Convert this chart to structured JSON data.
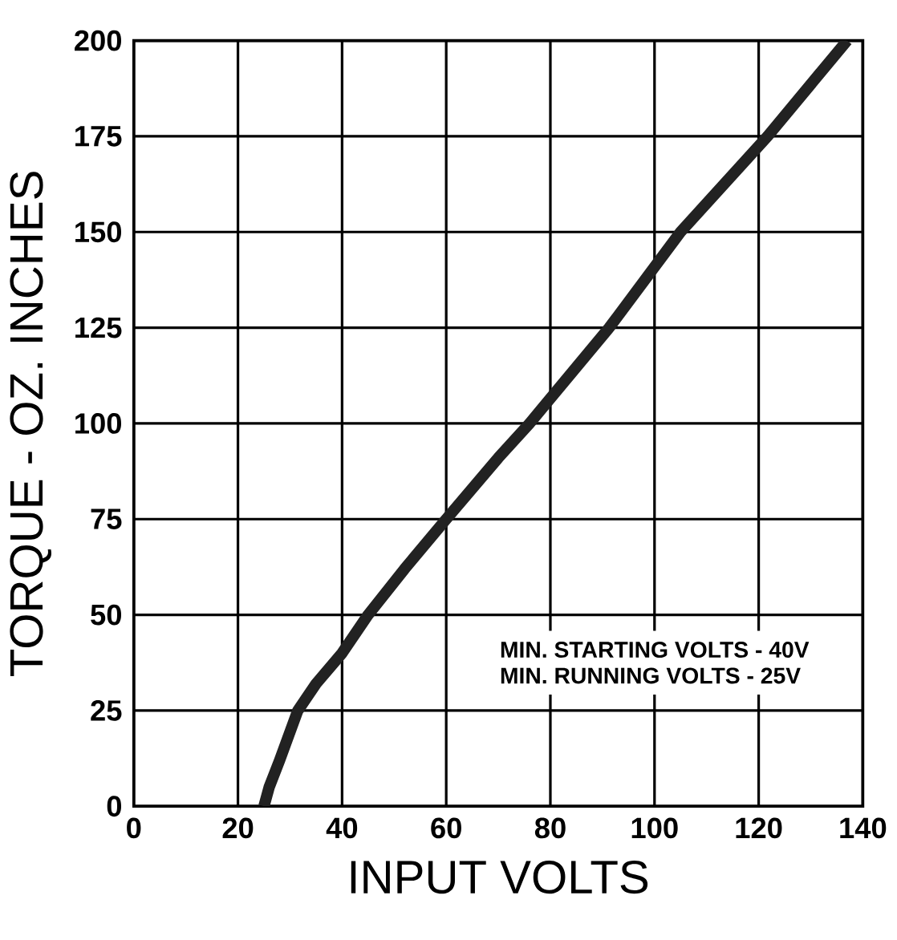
{
  "chart_data": {
    "type": "line",
    "xlabel": "INPUT VOLTS",
    "ylabel": "TORQUE - OZ. INCHES",
    "x": [
      25,
      26,
      28,
      31.5,
      35,
      40,
      45,
      52,
      60,
      70,
      76,
      91.3,
      105,
      121.7,
      137
    ],
    "values": [
      0,
      5,
      12,
      25,
      32,
      40,
      50,
      62,
      75,
      91,
      100,
      125,
      150,
      175,
      200
    ],
    "color": "#222222",
    "xlim": [
      0,
      140
    ],
    "ylim": [
      0,
      200
    ],
    "xticks": [
      0,
      20,
      40,
      60,
      80,
      100,
      120,
      140
    ],
    "yticks": [
      0,
      25,
      50,
      75,
      100,
      125,
      150,
      175,
      200
    ],
    "grid": true,
    "marker": "none",
    "line_style": "solid",
    "annotations": [
      "MIN. STARTING VOLTS - 40V",
      "MIN. RUNNING VOLTS - 25V"
    ]
  }
}
